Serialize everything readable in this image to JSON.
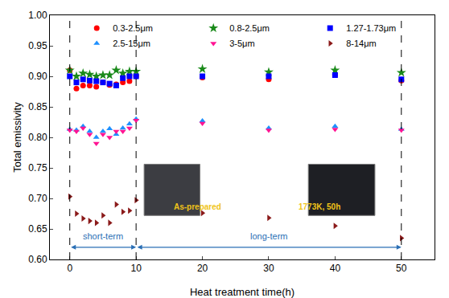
{
  "chart_data": {
    "type": "scatter",
    "x_label": "Heat treatment time(h)",
    "y_label": "Total emissivity",
    "x": [
      0,
      1,
      2,
      3,
      4,
      5,
      6,
      7,
      8,
      9,
      10,
      20,
      30,
      40,
      50
    ],
    "series": [
      {
        "name": "0.3-2.5μm",
        "color": "#ff0000",
        "marker": "circle",
        "values": [
          0.91,
          0.88,
          0.885,
          0.885,
          0.883,
          0.89,
          0.886,
          0.887,
          0.89,
          0.892,
          0.9,
          0.898,
          0.895,
          0.902,
          0.893
        ]
      },
      {
        "name": "0.8-2.5μm",
        "color": "#1a8a1a",
        "marker": "star",
        "values": [
          0.91,
          0.9,
          0.905,
          0.903,
          0.9,
          0.902,
          0.902,
          0.91,
          0.905,
          0.908,
          0.908,
          0.912,
          0.907,
          0.91,
          0.906
        ]
      },
      {
        "name": "1.27-1.73μm",
        "color": "#0000ff",
        "marker": "square",
        "values": [
          0.9,
          0.89,
          0.895,
          0.893,
          0.892,
          0.89,
          0.888,
          0.885,
          0.897,
          0.9,
          0.9,
          0.9,
          0.9,
          0.902,
          0.895
        ]
      },
      {
        "name": "2.5-15μm",
        "color": "#1e90ff",
        "marker": "triangle-up",
        "values": [
          0.813,
          0.812,
          0.818,
          0.81,
          0.8,
          0.81,
          0.814,
          0.805,
          0.815,
          0.822,
          0.83,
          0.827,
          0.815,
          0.818,
          0.813
        ]
      },
      {
        "name": "3-5μm",
        "color": "#ff1493",
        "marker": "triangle-down",
        "values": [
          0.812,
          0.81,
          0.815,
          0.805,
          0.79,
          0.805,
          0.8,
          0.81,
          0.81,
          0.815,
          0.828,
          0.823,
          0.812,
          0.813,
          0.812
        ]
      },
      {
        "name": "8-14μm",
        "color": "#8b1a1a",
        "marker": "triangle-right",
        "values": [
          0.703,
          0.675,
          0.667,
          0.663,
          0.66,
          0.672,
          0.66,
          0.69,
          0.678,
          0.68,
          0.697,
          0.676,
          0.668,
          0.655,
          0.635
        ]
      }
    ],
    "xlim": [
      -3,
      55
    ],
    "xticks": [
      0,
      10,
      20,
      30,
      40,
      50
    ],
    "ylim": [
      0.6,
      1.0
    ],
    "yticks": [
      {
        "value": 0.6,
        "label": "0.60"
      },
      0.65,
      {
        "value": 0.7,
        "label": "0.70"
      },
      0.75,
      {
        "value": 0.8,
        "label": "0.80"
      },
      0.85,
      {
        "value": 0.9,
        "label": "0.90"
      },
      0.95,
      {
        "value": 1.0,
        "label": "1.00"
      }
    ],
    "reference_lines": {
      "x": [
        0,
        10,
        50
      ]
    },
    "periods": [
      "short-term",
      "long-term"
    ],
    "insets": [
      "As-prepared",
      "1773K, 50h"
    ],
    "legend": "top right",
    "grid": false
  }
}
